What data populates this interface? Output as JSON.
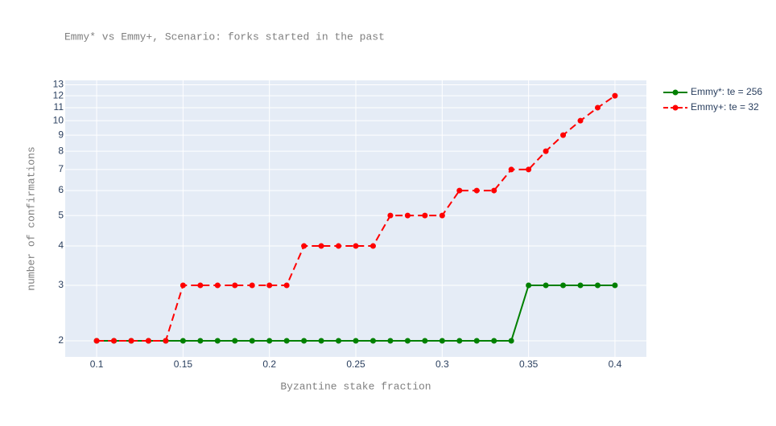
{
  "chart_data": {
    "type": "line",
    "title": "Emmy* vs Emmy+, Scenario: forks started in the past",
    "x_label": "Byzantine stake fraction",
    "y_label": "number of confirmations",
    "x": [
      0.1,
      0.11,
      0.12,
      0.13,
      0.14,
      0.15,
      0.16,
      0.17,
      0.18,
      0.19,
      0.2,
      0.21,
      0.22,
      0.23,
      0.24,
      0.25,
      0.26,
      0.27,
      0.28,
      0.29,
      0.3,
      0.31,
      0.32,
      0.33,
      0.34,
      0.35,
      0.36,
      0.37,
      0.38,
      0.39,
      0.4
    ],
    "series": [
      {
        "name": "Emmy*: te = 256",
        "color": "#008000",
        "dash": "solid",
        "values": [
          2,
          2,
          2,
          2,
          2,
          2,
          2,
          2,
          2,
          2,
          2,
          2,
          2,
          2,
          2,
          2,
          2,
          2,
          2,
          2,
          2,
          2,
          2,
          2,
          2,
          3,
          3,
          3,
          3,
          3,
          3
        ]
      },
      {
        "name": "Emmy+: te = 32",
        "color": "#ff0000",
        "dash": "dashed",
        "values": [
          2,
          2,
          2,
          2,
          2,
          3,
          3,
          3,
          3,
          3,
          3,
          3,
          4,
          4,
          4,
          4,
          4,
          5,
          5,
          5,
          5,
          6,
          6,
          6,
          7,
          7,
          8,
          9,
          10,
          11,
          12
        ]
      }
    ],
    "xlim": [
      0.0818,
      0.4182
    ],
    "xticks": [
      0.1,
      0.15,
      0.2,
      0.25,
      0.3,
      0.35,
      0.4
    ],
    "ylim": [
      1.778,
      13.43
    ],
    "yticks": [
      2,
      3,
      4,
      5,
      6,
      7,
      8,
      9,
      10,
      11,
      12,
      13
    ],
    "yscale": "log",
    "grid": true,
    "legend": "right"
  }
}
